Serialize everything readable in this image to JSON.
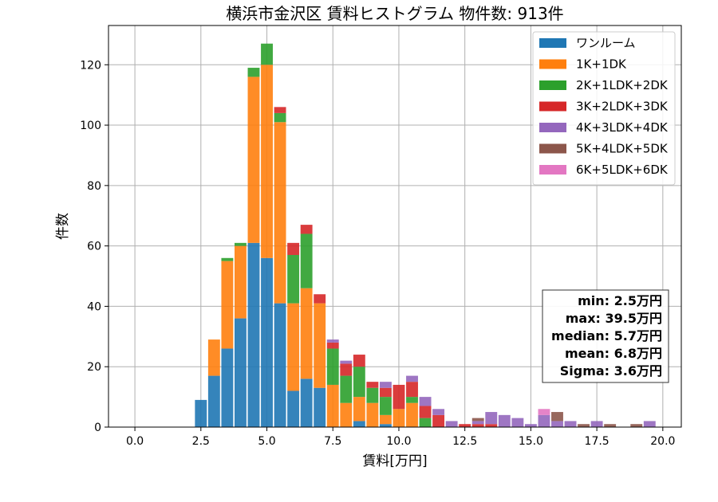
{
  "chart_data": {
    "type": "bar",
    "stacked": true,
    "title": "横浜市金沢区 賃料ヒストグラム 物件数: 913件",
    "xlabel": "賃料[万円]",
    "ylabel": "件数",
    "xlim": [
      -1.0,
      20.7
    ],
    "ylim": [
      0,
      133
    ],
    "xticks": [
      0.0,
      2.5,
      5.0,
      7.5,
      10.0,
      12.5,
      15.0,
      17.5,
      20.0
    ],
    "xtick_labels": [
      "0.0",
      "2.5",
      "5.0",
      "7.5",
      "10.0",
      "12.5",
      "15.0",
      "17.5",
      "20.0"
    ],
    "yticks": [
      0,
      20,
      40,
      60,
      80,
      100,
      120
    ],
    "ytick_labels": [
      "0",
      "20",
      "40",
      "60",
      "80",
      "100",
      "120"
    ],
    "grid": true,
    "legend_position": "top-right",
    "bin_width": 0.5,
    "bins": [
      2.5,
      3.0,
      3.5,
      4.0,
      4.5,
      5.0,
      5.5,
      6.0,
      6.5,
      7.0,
      7.5,
      8.0,
      8.5,
      9.0,
      9.5,
      10.0,
      10.5,
      11.0,
      11.5,
      12.0,
      12.5,
      13.0,
      13.5,
      14.0,
      14.5,
      15.0,
      15.5,
      16.0,
      16.5,
      17.0,
      17.5,
      18.0,
      18.5,
      19.0,
      19.5
    ],
    "series": [
      {
        "name": "ワンルーム",
        "color": "#1f77b4",
        "values": [
          9,
          17,
          26,
          36,
          61,
          56,
          41,
          12,
          16,
          13,
          0,
          0,
          2,
          0,
          1,
          0,
          0,
          0,
          0,
          0,
          0,
          0,
          0,
          0,
          0,
          0,
          0,
          0,
          0,
          0,
          0,
          0,
          0,
          0,
          0
        ]
      },
      {
        "name": "1K+1DK",
        "color": "#ff7f0e",
        "values": [
          0,
          12,
          29,
          24,
          55,
          64,
          60,
          29,
          30,
          28,
          14,
          8,
          8,
          8,
          3,
          6,
          8,
          0,
          0,
          0,
          0,
          0,
          0,
          0,
          0,
          0,
          0,
          0,
          0,
          0,
          0,
          0,
          0,
          0,
          0
        ]
      },
      {
        "name": "2K+1LDK+2DK",
        "color": "#2ca02c",
        "values": [
          0,
          0,
          1,
          1,
          3,
          7,
          3,
          16,
          18,
          0,
          12,
          9,
          10,
          5,
          6,
          0,
          2,
          3,
          0,
          0,
          0,
          0,
          0,
          0,
          0,
          0,
          0,
          0,
          0,
          0,
          0,
          0,
          0,
          0,
          0
        ]
      },
      {
        "name": "3K+2LDK+3DK",
        "color": "#d62728",
        "values": [
          0,
          0,
          0,
          0,
          0,
          0,
          2,
          4,
          3,
          3,
          2,
          4,
          4,
          2,
          3,
          8,
          5,
          4,
          4,
          0,
          1,
          1,
          1,
          0,
          0,
          0,
          0,
          0,
          0,
          0,
          0,
          0,
          0,
          0,
          0
        ]
      },
      {
        "name": "4K+3LDK+4DK",
        "color": "#9467bd",
        "values": [
          0,
          0,
          0,
          0,
          0,
          0,
          0,
          0,
          0,
          0,
          1,
          1,
          0,
          0,
          2,
          0,
          2,
          3,
          2,
          2,
          0,
          1,
          4,
          4,
          3,
          1,
          4,
          2,
          2,
          0,
          2,
          0,
          0,
          0,
          2
        ]
      },
      {
        "name": "5K+4LDK+5DK",
        "color": "#8c564b",
        "values": [
          0,
          0,
          0,
          0,
          0,
          0,
          0,
          0,
          0,
          0,
          0,
          0,
          0,
          0,
          0,
          0,
          0,
          0,
          0,
          0,
          0,
          1,
          0,
          0,
          0,
          0,
          0,
          3,
          0,
          1,
          0,
          1,
          0,
          1,
          0
        ]
      },
      {
        "name": "6K+5LDK+6DK",
        "color": "#e377c2",
        "values": [
          0,
          0,
          0,
          0,
          0,
          0,
          0,
          0,
          0,
          0,
          0,
          0,
          0,
          0,
          0,
          0,
          0,
          0,
          0,
          0,
          0,
          0,
          0,
          0,
          0,
          0,
          2,
          0,
          0,
          0,
          0,
          0,
          0,
          0,
          0
        ]
      }
    ],
    "stats": [
      "min: 2.5万円",
      "max: 39.5万円",
      "median: 5.7万円",
      "mean: 6.8万円",
      "Sigma: 3.6万円"
    ]
  }
}
